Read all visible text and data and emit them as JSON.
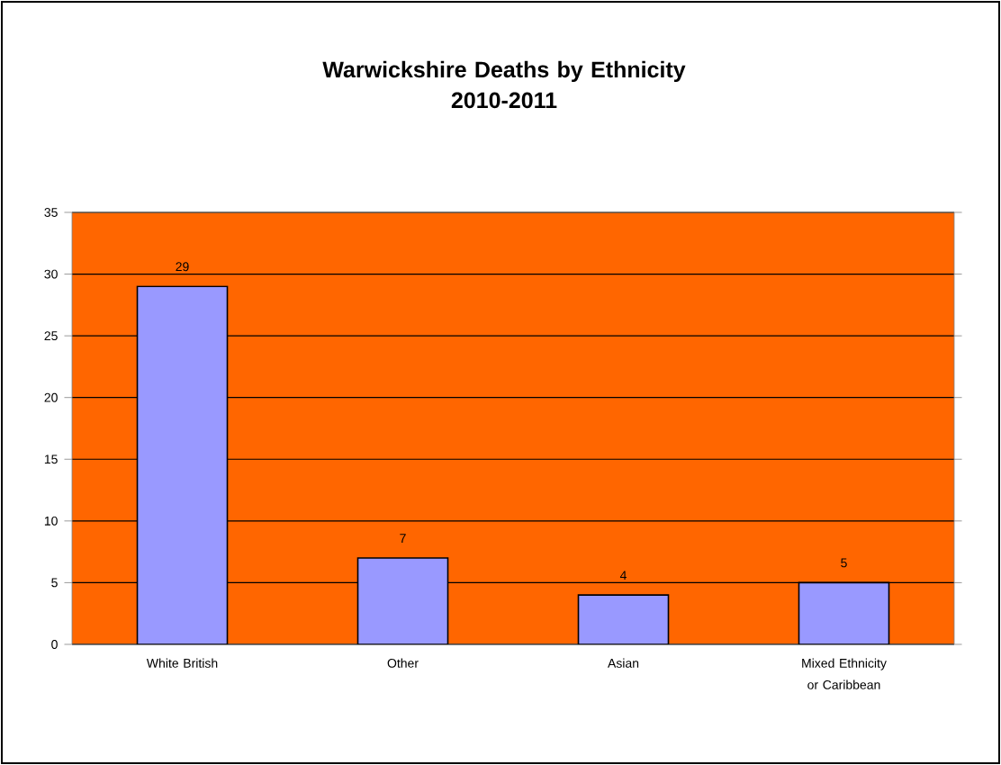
{
  "chart_data": {
    "type": "bar",
    "title": "Warwickshire Deaths by Ethnicity\n2010-2011",
    "categories": [
      "White British",
      "Other",
      "Asian",
      "Mixed Ethnicity or Caribbean"
    ],
    "values": [
      29,
      7,
      4,
      5
    ],
    "color": "#9999ff",
    "ylim": [
      0,
      35
    ],
    "yticks": [
      0,
      5,
      10,
      15,
      20,
      25,
      30,
      35
    ],
    "grid": "y",
    "data_labels": true
  }
}
